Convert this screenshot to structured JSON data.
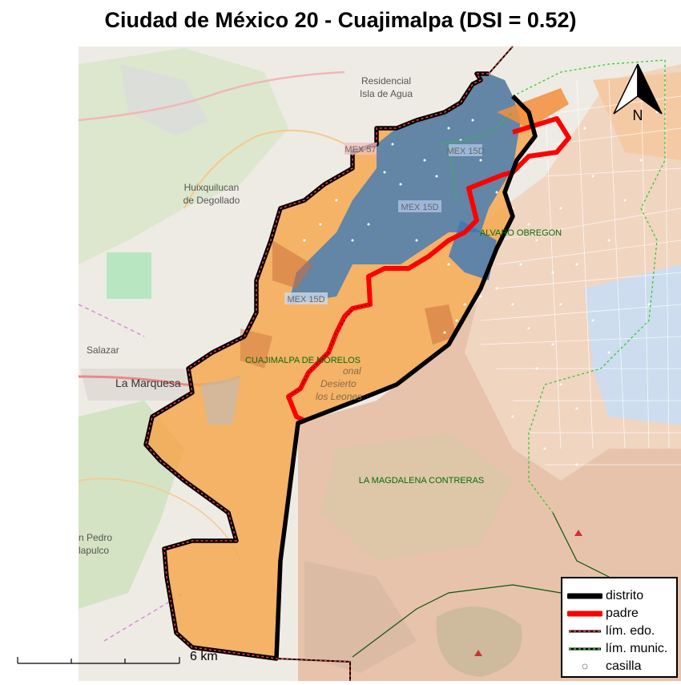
{
  "title": "Ciudad de México 20 - Cuajimalpa (DSI = 0.52)",
  "north_arrow": {
    "label": "N",
    "icon": "north-arrow-icon"
  },
  "scale_bar": {
    "label": "6 km"
  },
  "legend": {
    "items": [
      {
        "label": "distrito",
        "color": "#000000",
        "style": "thick-solid"
      },
      {
        "label": "padre",
        "color": "#ff0000",
        "style": "thick-solid"
      },
      {
        "label": "lím. edo.",
        "color": "#000000",
        "style": "dashed-red"
      },
      {
        "label": "lím. munic.",
        "color": "#000000",
        "style": "dashed-green"
      },
      {
        "label": "casilla",
        "color": "#ffffff",
        "style": "circle"
      }
    ]
  },
  "municipality_labels": {
    "cuajimalpa": "CUAJIMALPA DE MORELOS",
    "alvaro": "ALVARO OBREGON",
    "magdalena": "LA MAGDALENA CONTRERAS"
  },
  "place_labels": {
    "residencial": "Residencial",
    "isla": "Isla de Agua",
    "huixquilucan": "Huixquilucan",
    "degollado": "de Degollado",
    "salazar": "Salazar",
    "marquesa": "La Marquesa",
    "san_pedro": "n Pedro",
    "apulco": "lapulco",
    "nacional": "onal",
    "desierto": "Desierto",
    "leones": "los Leones"
  },
  "road_labels": {
    "mex57": "MEX 57",
    "mex15d_a": "MEX 15D",
    "mex15d_b": "MEX 15D",
    "mex15d_c": "MEX 15D"
  },
  "colors": {
    "district_fill": "#f5a64a",
    "blue_fill": "#3a78b8",
    "padre": "#ff0000",
    "distrito": "#000000",
    "municipal": "#22cc22",
    "background_west": "#f1efe9",
    "background_east": "#e8d7c6"
  }
}
